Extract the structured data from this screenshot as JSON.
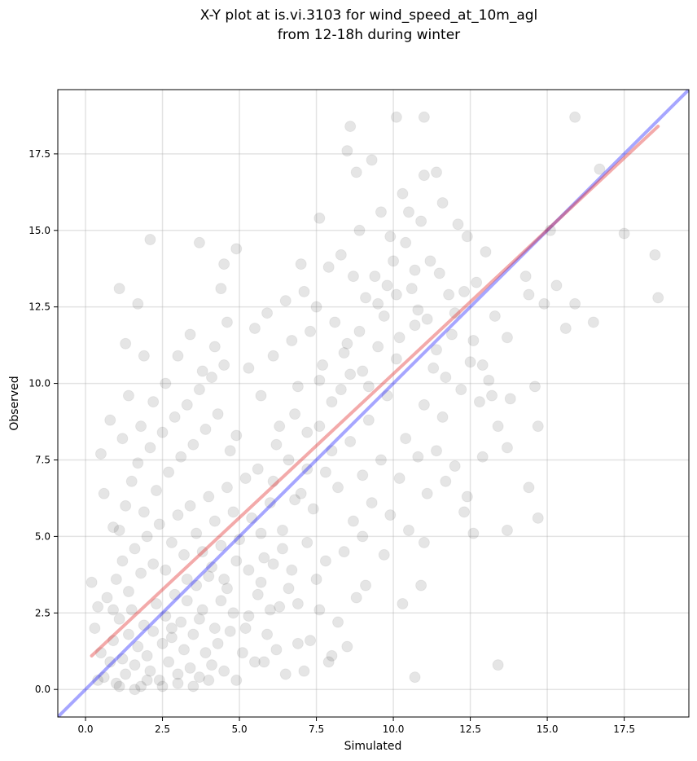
{
  "chart_data": {
    "type": "scatter",
    "title": "X-Y plot at is.vi.3103 for wind_speed_at_10m_agl",
    "subtitle": "from 12-18h during winter",
    "xlabel": "Simulated",
    "ylabel": "Observed",
    "xlim": [
      -0.9,
      19.6
    ],
    "ylim": [
      -0.9,
      19.6
    ],
    "x_ticks": [
      "0.0",
      "2.5",
      "5.0",
      "7.5",
      "10.0",
      "12.5",
      "15.0",
      "17.5"
    ],
    "y_ticks": [
      "0.0",
      "2.5",
      "5.0",
      "7.5",
      "10.0",
      "12.5",
      "15.0",
      "17.5"
    ],
    "grid": true,
    "point_color": "#000000",
    "identity_line_color": "#0000ff",
    "fit_line_color": "#e02020",
    "identity_line": {
      "x": [
        -0.9,
        19.6
      ],
      "y": [
        -0.9,
        19.6
      ]
    },
    "fit_line": {
      "x": [
        0.2,
        18.6
      ],
      "y": [
        1.1,
        18.4
      ]
    },
    "points": [
      [
        0.3,
        2.0
      ],
      [
        0.5,
        1.2
      ],
      [
        0.6,
        0.4
      ],
      [
        0.8,
        0.9
      ],
      [
        0.9,
        1.6
      ],
      [
        1.0,
        0.2
      ],
      [
        1.1,
        2.3
      ],
      [
        1.2,
        1.0
      ],
      [
        1.3,
        0.5
      ],
      [
        1.4,
        1.8
      ],
      [
        1.5,
        2.6
      ],
      [
        1.6,
        0.8
      ],
      [
        1.7,
        1.4
      ],
      [
        1.8,
        0.1
      ],
      [
        1.9,
        2.1
      ],
      [
        2.0,
        1.1
      ],
      [
        2.1,
        0.6
      ],
      [
        2.2,
        1.9
      ],
      [
        2.3,
        2.8
      ],
      [
        2.4,
        0.3
      ],
      [
        2.5,
        1.5
      ],
      [
        2.6,
        2.4
      ],
      [
        2.7,
        0.9
      ],
      [
        2.8,
        1.7
      ],
      [
        2.9,
        3.1
      ],
      [
        3.0,
        0.5
      ],
      [
        3.1,
        2.2
      ],
      [
        3.2,
        1.3
      ],
      [
        3.3,
        2.9
      ],
      [
        3.4,
        0.7
      ],
      [
        3.5,
        1.8
      ],
      [
        3.6,
        3.4
      ],
      [
        3.7,
        0.4
      ],
      [
        3.8,
        2.6
      ],
      [
        3.9,
        1.2
      ],
      [
        4.0,
        3.7
      ],
      [
        4.1,
        0.8
      ],
      [
        4.2,
        2.0
      ],
      [
        4.3,
        1.5
      ],
      [
        4.4,
        2.9
      ],
      [
        4.5,
        0.6
      ],
      [
        4.6,
        3.3
      ],
      [
        4.7,
        1.9
      ],
      [
        4.8,
        2.5
      ],
      [
        4.9,
        0.3
      ],
      [
        0.2,
        3.5
      ],
      [
        0.4,
        2.7
      ],
      [
        0.7,
        3.0
      ],
      [
        1.0,
        3.6
      ],
      [
        1.2,
        4.2
      ],
      [
        1.4,
        3.2
      ],
      [
        1.6,
        4.6
      ],
      [
        1.8,
        3.8
      ],
      [
        2.0,
        5.0
      ],
      [
        2.2,
        4.1
      ],
      [
        2.4,
        5.4
      ],
      [
        2.6,
        3.9
      ],
      [
        2.8,
        4.8
      ],
      [
        3.0,
        5.7
      ],
      [
        3.2,
        4.4
      ],
      [
        3.4,
        6.0
      ],
      [
        3.6,
        5.1
      ],
      [
        3.8,
        4.5
      ],
      [
        4.0,
        6.3
      ],
      [
        4.2,
        5.5
      ],
      [
        4.4,
        4.7
      ],
      [
        4.6,
        6.6
      ],
      [
        4.8,
        5.8
      ],
      [
        5.0,
        4.9
      ],
      [
        5.2,
        6.9
      ],
      [
        1.1,
        5.2
      ],
      [
        1.3,
        6.0
      ],
      [
        1.5,
        6.8
      ],
      [
        1.7,
        7.4
      ],
      [
        1.9,
        5.8
      ],
      [
        2.1,
        7.9
      ],
      [
        2.3,
        6.5
      ],
      [
        2.5,
        8.4
      ],
      [
        2.7,
        7.1
      ],
      [
        2.9,
        8.9
      ],
      [
        3.1,
        7.6
      ],
      [
        3.3,
        9.3
      ],
      [
        3.5,
        8.0
      ],
      [
        3.7,
        9.8
      ],
      [
        3.9,
        8.5
      ],
      [
        4.1,
        10.2
      ],
      [
        4.3,
        9.0
      ],
      [
        4.5,
        10.6
      ],
      [
        4.7,
        7.8
      ],
      [
        4.9,
        8.3
      ],
      [
        1.2,
        8.2
      ],
      [
        1.4,
        9.6
      ],
      [
        1.8,
        8.6
      ],
      [
        2.2,
        9.4
      ],
      [
        2.6,
        10.0
      ],
      [
        3.0,
        10.9
      ],
      [
        3.4,
        11.6
      ],
      [
        3.8,
        10.4
      ],
      [
        4.2,
        11.2
      ],
      [
        4.6,
        12.0
      ],
      [
        1.1,
        13.1
      ],
      [
        1.7,
        12.6
      ],
      [
        2.1,
        14.7
      ],
      [
        3.7,
        14.6
      ],
      [
        4.5,
        13.9
      ],
      [
        4.9,
        14.4
      ],
      [
        4.4,
        13.1
      ],
      [
        1.3,
        11.3
      ],
      [
        1.9,
        10.9
      ],
      [
        0.5,
        7.7
      ],
      [
        0.6,
        6.4
      ],
      [
        0.9,
        5.3
      ],
      [
        0.8,
        8.8
      ],
      [
        5.1,
        1.2
      ],
      [
        5.3,
        2.4
      ],
      [
        5.5,
        0.9
      ],
      [
        5.7,
        3.5
      ],
      [
        5.9,
        1.8
      ],
      [
        6.1,
        4.1
      ],
      [
        6.3,
        2.7
      ],
      [
        6.5,
        0.5
      ],
      [
        6.7,
        3.9
      ],
      [
        6.9,
        1.5
      ],
      [
        5.4,
        5.6
      ],
      [
        5.6,
        7.2
      ],
      [
        5.8,
        4.3
      ],
      [
        6.0,
        6.1
      ],
      [
        6.2,
        8.0
      ],
      [
        6.4,
        5.2
      ],
      [
        6.6,
        7.5
      ],
      [
        6.8,
        9.0
      ],
      [
        7.0,
        6.4
      ],
      [
        7.2,
        8.4
      ],
      [
        7.4,
        5.9
      ],
      [
        7.6,
        10.1
      ],
      [
        7.8,
        7.1
      ],
      [
        8.0,
        9.4
      ],
      [
        8.2,
        6.6
      ],
      [
        8.4,
        11.0
      ],
      [
        8.6,
        8.1
      ],
      [
        5.3,
        10.5
      ],
      [
        5.5,
        11.8
      ],
      [
        5.7,
        9.6
      ],
      [
        5.9,
        12.3
      ],
      [
        6.1,
        10.9
      ],
      [
        6.3,
        8.6
      ],
      [
        6.5,
        12.7
      ],
      [
        6.7,
        11.4
      ],
      [
        6.9,
        9.9
      ],
      [
        7.1,
        13.0
      ],
      [
        7.3,
        11.7
      ],
      [
        7.5,
        12.5
      ],
      [
        7.7,
        10.6
      ],
      [
        7.9,
        13.8
      ],
      [
        8.1,
        12.0
      ],
      [
        8.3,
        14.2
      ],
      [
        8.5,
        11.3
      ],
      [
        8.7,
        13.5
      ],
      [
        8.9,
        15.0
      ],
      [
        9.1,
        12.8
      ],
      [
        7.0,
        13.9
      ],
      [
        7.6,
        15.4
      ],
      [
        8.5,
        17.6
      ],
      [
        8.6,
        18.4
      ],
      [
        8.8,
        16.9
      ],
      [
        9.3,
        17.3
      ],
      [
        9.6,
        15.6
      ],
      [
        9.9,
        14.8
      ],
      [
        10.1,
        18.7
      ],
      [
        10.3,
        16.2
      ],
      [
        11.0,
        18.7
      ],
      [
        11.0,
        16.8
      ],
      [
        11.4,
        16.9
      ],
      [
        11.6,
        15.9
      ],
      [
        10.9,
        15.3
      ],
      [
        10.5,
        15.6
      ],
      [
        10.0,
        14.0
      ],
      [
        9.4,
        13.5
      ],
      [
        9.7,
        12.2
      ],
      [
        10.2,
        11.5
      ],
      [
        10.6,
        13.1
      ],
      [
        10.8,
        12.4
      ],
      [
        11.2,
        14.0
      ],
      [
        11.5,
        13.6
      ],
      [
        11.8,
        12.9
      ],
      [
        12.1,
        15.2
      ],
      [
        12.4,
        14.8
      ],
      [
        12.7,
        13.3
      ],
      [
        13.0,
        14.3
      ],
      [
        13.3,
        12.2
      ],
      [
        9.0,
        10.4
      ],
      [
        9.2,
        8.8
      ],
      [
        9.5,
        11.2
      ],
      [
        9.8,
        9.6
      ],
      [
        10.1,
        10.8
      ],
      [
        10.4,
        8.2
      ],
      [
        10.7,
        11.9
      ],
      [
        11.0,
        9.3
      ],
      [
        11.3,
        10.5
      ],
      [
        11.6,
        8.9
      ],
      [
        11.9,
        11.6
      ],
      [
        12.2,
        9.8
      ],
      [
        12.5,
        10.7
      ],
      [
        12.8,
        9.4
      ],
      [
        13.1,
        10.1
      ],
      [
        13.4,
        8.6
      ],
      [
        13.7,
        11.5
      ],
      [
        9.0,
        7.0
      ],
      [
        9.3,
        6.1
      ],
      [
        9.6,
        7.5
      ],
      [
        9.9,
        5.7
      ],
      [
        10.2,
        6.9
      ],
      [
        10.5,
        5.2
      ],
      [
        10.8,
        7.6
      ],
      [
        11.1,
        6.4
      ],
      [
        11.4,
        7.8
      ],
      [
        11.7,
        6.8
      ],
      [
        12.0,
        7.3
      ],
      [
        12.3,
        5.8
      ],
      [
        12.6,
        5.1
      ],
      [
        12.9,
        7.6
      ],
      [
        12.4,
        6.3
      ],
      [
        13.7,
        5.2
      ],
      [
        13.7,
        7.9
      ],
      [
        14.4,
        6.6
      ],
      [
        14.7,
        5.6
      ],
      [
        14.7,
        8.6
      ],
      [
        14.6,
        9.9
      ],
      [
        13.8,
        9.5
      ],
      [
        14.4,
        12.9
      ],
      [
        14.9,
        12.6
      ],
      [
        15.3,
        13.2
      ],
      [
        15.9,
        12.6
      ],
      [
        16.5,
        12.0
      ],
      [
        15.6,
        11.8
      ],
      [
        14.3,
        13.5
      ],
      [
        15.1,
        15.0
      ],
      [
        15.9,
        18.7
      ],
      [
        16.7,
        17.0
      ],
      [
        17.5,
        14.9
      ],
      [
        18.5,
        14.2
      ],
      [
        18.6,
        12.8
      ],
      [
        13.4,
        0.8
      ],
      [
        10.3,
        2.8
      ],
      [
        10.7,
        0.4
      ],
      [
        10.9,
        3.4
      ],
      [
        11.0,
        4.8
      ],
      [
        9.7,
        4.4
      ],
      [
        9.1,
        3.4
      ],
      [
        8.8,
        3.0
      ],
      [
        8.5,
        1.4
      ],
      [
        8.0,
        1.1
      ],
      [
        7.9,
        0.9
      ],
      [
        7.6,
        2.6
      ],
      [
        7.3,
        1.6
      ],
      [
        7.1,
        0.6
      ],
      [
        7.5,
        3.6
      ],
      [
        7.8,
        4.2
      ],
      [
        8.2,
        2.2
      ],
      [
        8.4,
        4.5
      ],
      [
        8.7,
        5.5
      ],
      [
        9.0,
        5.0
      ],
      [
        6.2,
        1.3
      ],
      [
        5.8,
        0.9
      ],
      [
        6.0,
        2.6
      ],
      [
        5.6,
        3.1
      ],
      [
        5.2,
        2.0
      ],
      [
        6.6,
        3.3
      ],
      [
        6.9,
        2.8
      ],
      [
        7.2,
        4.8
      ],
      [
        1.6,
        0.0
      ],
      [
        2.0,
        0.3
      ],
      [
        2.5,
        0.1
      ],
      [
        3.0,
        0.2
      ],
      [
        3.5,
        0.1
      ],
      [
        4.0,
        0.3
      ],
      [
        0.4,
        0.3
      ],
      [
        1.1,
        0.1
      ],
      [
        0.9,
        2.6
      ],
      [
        2.8,
        2.0
      ],
      [
        3.3,
        3.6
      ],
      [
        3.7,
        2.3
      ],
      [
        4.1,
        4.0
      ],
      [
        4.5,
        3.6
      ],
      [
        4.9,
        4.2
      ],
      [
        5.3,
        3.9
      ],
      [
        5.7,
        5.1
      ],
      [
        6.1,
        6.8
      ],
      [
        6.4,
        4.6
      ],
      [
        6.8,
        6.2
      ],
      [
        7.2,
        7.2
      ],
      [
        7.6,
        8.6
      ],
      [
        8.0,
        7.8
      ],
      [
        8.3,
        9.8
      ],
      [
        8.6,
        10.3
      ],
      [
        8.9,
        11.7
      ],
      [
        9.2,
        9.9
      ],
      [
        9.5,
        12.6
      ],
      [
        9.8,
        13.2
      ],
      [
        10.1,
        12.9
      ],
      [
        10.4,
        14.6
      ],
      [
        10.7,
        13.7
      ],
      [
        11.1,
        12.1
      ],
      [
        11.4,
        11.1
      ],
      [
        11.7,
        10.2
      ],
      [
        12.0,
        12.3
      ],
      [
        12.3,
        13.0
      ],
      [
        12.6,
        11.4
      ],
      [
        12.9,
        10.6
      ],
      [
        13.2,
        9.6
      ]
    ]
  }
}
